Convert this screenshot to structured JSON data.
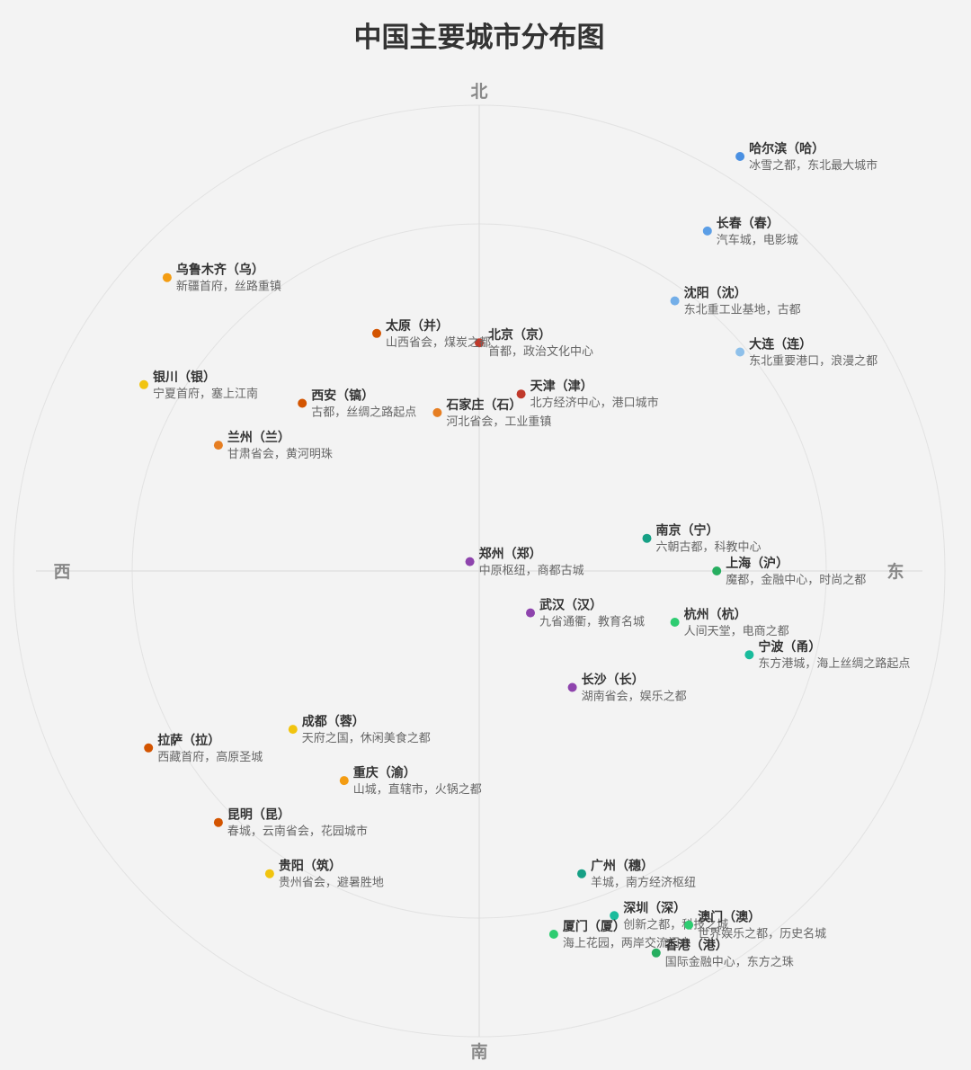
{
  "chart_data": {
    "type": "scatter",
    "title": "中国主要城市分布图",
    "directions": {
      "north": "北",
      "south": "南",
      "west": "西",
      "east": "东"
    },
    "grid": true,
    "x_range": [
      -1,
      1
    ],
    "y_range": [
      -1,
      1
    ],
    "points": [
      {
        "name": "哈尔滨（哈）",
        "desc": "冰雪之都，东北最大城市",
        "x": 0.56,
        "y": 0.89,
        "color": "#4a90e2"
      },
      {
        "name": "长春（春）",
        "desc": "汽车城，电影城",
        "x": 0.49,
        "y": 0.73,
        "color": "#5b9ee6"
      },
      {
        "name": "沈阳（沈）",
        "desc": "东北重工业基地，古都",
        "x": 0.42,
        "y": 0.58,
        "color": "#73aee8"
      },
      {
        "name": "大连（连）",
        "desc": "东北重要港口，浪漫之都",
        "x": 0.56,
        "y": 0.47,
        "color": "#8ec0ea"
      },
      {
        "name": "北京（京）",
        "desc": "首都，政治文化中心",
        "x": 0.0,
        "y": 0.49,
        "color": "#c0392b"
      },
      {
        "name": "天津（津）",
        "desc": "北方经济中心，港口城市",
        "x": 0.09,
        "y": 0.38,
        "color": "#c0392b"
      },
      {
        "name": "石家庄（石）",
        "desc": "河北省会，工业重镇",
        "x": -0.09,
        "y": 0.34,
        "color": "#e67e22"
      },
      {
        "name": "太原（并）",
        "desc": "山西省会，煤炭之都",
        "x": -0.22,
        "y": 0.51,
        "color": "#d35400"
      },
      {
        "name": "乌鲁木齐（乌）",
        "desc": "新疆首府，丝路重镇",
        "x": -0.67,
        "y": 0.63,
        "color": "#f39c12"
      },
      {
        "name": "银川（银）",
        "desc": "宁夏首府，塞上江南",
        "x": -0.72,
        "y": 0.4,
        "color": "#f1c40f"
      },
      {
        "name": "西安（镐）",
        "desc": "古都，丝绸之路起点",
        "x": -0.38,
        "y": 0.36,
        "color": "#d35400"
      },
      {
        "name": "兰州（兰）",
        "desc": "甘肃省会，黄河明珠",
        "x": -0.56,
        "y": 0.27,
        "color": "#e67e22"
      },
      {
        "name": "郑州（郑）",
        "desc": "中原枢纽，商都古城",
        "x": -0.02,
        "y": 0.02,
        "color": "#8e44ad"
      },
      {
        "name": "南京（宁）",
        "desc": "六朝古都，科教中心",
        "x": 0.36,
        "y": 0.07,
        "color": "#16a085"
      },
      {
        "name": "上海（沪）",
        "desc": "魔都，金融中心，时尚之都",
        "x": 0.51,
        "y": 0.0,
        "color": "#27ae60"
      },
      {
        "name": "武汉（汉）",
        "desc": "九省通衢，教育名城",
        "x": 0.11,
        "y": -0.09,
        "color": "#8e44ad"
      },
      {
        "name": "杭州（杭）",
        "desc": "人间天堂，电商之都",
        "x": 0.42,
        "y": -0.11,
        "color": "#2ecc71"
      },
      {
        "name": "宁波（甬）",
        "desc": "东方港城，海上丝绸之路起点",
        "x": 0.58,
        "y": -0.18,
        "color": "#1abc9c"
      },
      {
        "name": "长沙（长）",
        "desc": "湖南省会，娱乐之都",
        "x": 0.2,
        "y": -0.25,
        "color": "#8e44ad"
      },
      {
        "name": "成都（蓉）",
        "desc": "天府之国，休闲美食之都",
        "x": -0.4,
        "y": -0.34,
        "color": "#f1c40f"
      },
      {
        "name": "拉萨（拉）",
        "desc": "西藏首府，高原圣城",
        "x": -0.71,
        "y": -0.38,
        "color": "#d35400"
      },
      {
        "name": "重庆（渝）",
        "desc": "山城，直辖市，火锅之都",
        "x": -0.29,
        "y": -0.45,
        "color": "#f39c12"
      },
      {
        "name": "昆明（昆）",
        "desc": "春城，云南省会，花园城市",
        "x": -0.56,
        "y": -0.54,
        "color": "#d35400"
      },
      {
        "name": "贵阳（筑）",
        "desc": "贵州省会，避暑胜地",
        "x": -0.45,
        "y": -0.65,
        "color": "#f1c40f"
      },
      {
        "name": "广州（穗）",
        "desc": "羊城，南方经济枢纽",
        "x": 0.22,
        "y": -0.65,
        "color": "#16a085"
      },
      {
        "name": "深圳（深）",
        "desc": "创新之都，科技之城",
        "x": 0.29,
        "y": -0.74,
        "color": "#1abc9c"
      },
      {
        "name": "澳门（澳）",
        "desc": "世界娱乐之都，历史名城",
        "x": 0.45,
        "y": -0.76,
        "color": "#2ecc71"
      },
      {
        "name": "厦门（厦）",
        "desc": "海上花园，两岸交流门户",
        "x": 0.16,
        "y": -0.78,
        "color": "#2ecc71"
      },
      {
        "name": "香港（港）",
        "desc": "国际金融中心，东方之珠",
        "x": 0.38,
        "y": -0.82,
        "color": "#27ae60"
      }
    ]
  }
}
